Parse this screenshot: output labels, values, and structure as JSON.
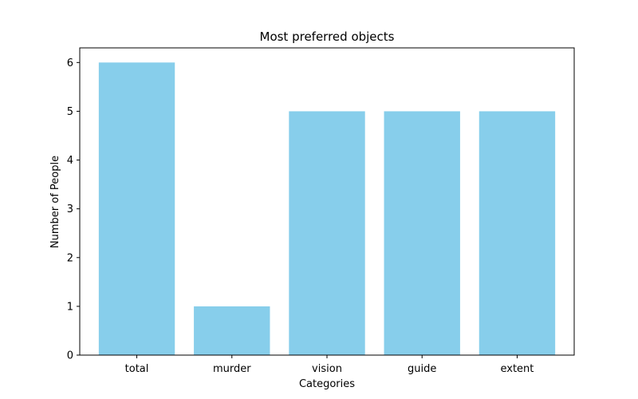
{
  "chart_data": {
    "type": "bar",
    "title": "Most preferred objects",
    "xlabel": "Categories",
    "ylabel": "Number of People",
    "categories": [
      "total",
      "murder",
      "vision",
      "guide",
      "extent"
    ],
    "values": [
      6,
      1,
      5,
      5,
      5
    ],
    "ylim": [
      0,
      6.3
    ],
    "yticks": [
      0,
      1,
      2,
      3,
      4,
      5,
      6
    ],
    "ytick_labels": [
      "0",
      "1",
      "2",
      "3",
      "4",
      "5",
      "6"
    ],
    "bar_color": "#87ceeb",
    "grid": false,
    "legend": "none"
  }
}
